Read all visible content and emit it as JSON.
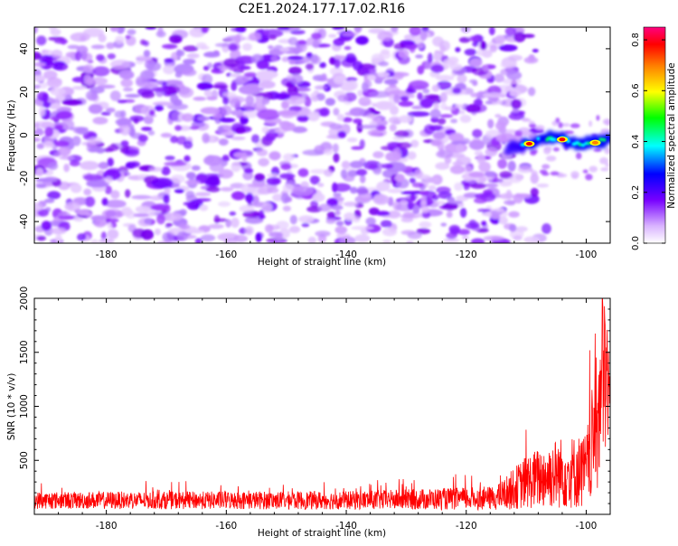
{
  "title": "C2E1.2024.177.17.02.R16",
  "chart_data": [
    {
      "type": "heatmap",
      "xlabel": "Height of straight line (km)",
      "ylabel": "Frequency (Hz)",
      "xlim": [
        -192,
        -96
      ],
      "ylim": [
        -50,
        50
      ],
      "xticks": [
        -180,
        -160,
        -140,
        -120,
        -100
      ],
      "yticks": [
        -40,
        -20,
        0,
        20,
        40
      ],
      "colorbar": {
        "label": "Normalized spectral amplitude",
        "range": [
          0,
          0.85
        ],
        "ticks": [
          0.0,
          0.2,
          0.4,
          0.6,
          0.8
        ],
        "colors": [
          "#ffffff",
          "#cc99ff",
          "#7700ff",
          "#0000ff",
          "#00ffff",
          "#00ff00",
          "#ffff00",
          "#ff8000",
          "#ff0000",
          "#ff0080"
        ]
      },
      "signal_track": [
        {
          "x": -113,
          "y": -6
        },
        {
          "x": -110,
          "y": -4
        },
        {
          "x": -107,
          "y": -1
        },
        {
          "x": -104,
          "y": -2
        },
        {
          "x": -101,
          "y": -4
        },
        {
          "x": -98,
          "y": -3
        },
        {
          "x": -96,
          "y": -2
        }
      ],
      "peaks": [
        {
          "x": -109.5,
          "y": -4,
          "value": 0.82
        },
        {
          "x": -104,
          "y": -2,
          "value": 0.8
        },
        {
          "x": -98.5,
          "y": -3.5,
          "value": 0.7
        }
      ],
      "noise_extent_x": [
        -192,
        -111
      ],
      "grid": false
    },
    {
      "type": "line",
      "xlabel": "Height of straight line (km)",
      "ylabel": "SNR (10 * v/v)",
      "xlim": [
        -192,
        -96
      ],
      "ylim": [
        0,
        2000
      ],
      "xticks": [
        -180,
        -160,
        -140,
        -120,
        -100
      ],
      "yticks": [
        500,
        1000,
        1500,
        2000
      ],
      "series": [
        {
          "color": "#ff0000",
          "envelope": [
            {
              "x": -192,
              "base": 130,
              "amp": 80
            },
            {
              "x": -140,
              "base": 130,
              "amp": 85
            },
            {
              "x": -115,
              "base": 150,
              "amp": 110
            },
            {
              "x": -110,
              "base": 300,
              "amp": 250
            },
            {
              "x": -105,
              "base": 380,
              "amp": 330
            },
            {
              "x": -100,
              "base": 400,
              "amp": 350
            },
            {
              "x": -98,
              "base": 900,
              "amp": 700
            },
            {
              "x": -97,
              "base": 1300,
              "amp": 800
            },
            {
              "x": -96,
              "base": 1100,
              "amp": 500
            }
          ],
          "peak": {
            "x": -97.3,
            "y": 2000
          }
        }
      ],
      "grid": false
    }
  ]
}
